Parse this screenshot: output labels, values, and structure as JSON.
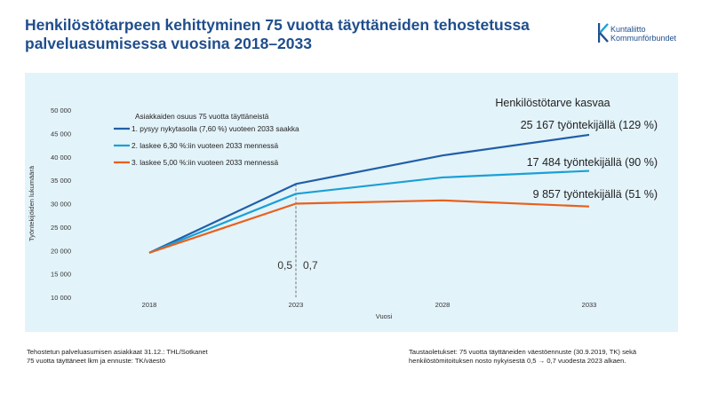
{
  "title_line1": "Henkilöstötarpeen kehittyminen 75 vuotta täyttäneiden tehostetussa",
  "title_line2": "palveluasumisessa vuosina 2018–2033",
  "logo": {
    "line1": "Kuntaliitto",
    "line2": "Kommunförbundet",
    "color": "#1f4e8c"
  },
  "footer_left": [
    "Tehostetun palveluasumisen asiakkaat 31.12.: THL/Sotkanet",
    "75 vuotta täyttäneet lkm ja ennuste: TK/väestö"
  ],
  "footer_right": [
    "Taustaoletukset: 75 vuotta täyttäneiden väestöennuste (30.9.2019, TK) sekä",
    "henkilöstömitoituksen nosto nykyisestä 0,5 → 0,7 vuodesta 2023 alkaen."
  ],
  "chart_data": {
    "type": "line",
    "x": [
      "2018",
      "2023",
      "2028",
      "2033"
    ],
    "xlabel": "Vuosi",
    "ylabel": "Työntekijöiden lukumäärä",
    "ylim": [
      10000,
      50000
    ],
    "yticks": [
      "10 000",
      "15 000",
      "20 000",
      "25 000",
      "30 000",
      "35 000",
      "40 000",
      "45 000",
      "50 000"
    ],
    "ytick_values": [
      10000,
      15000,
      20000,
      25000,
      30000,
      35000,
      40000,
      45000,
      50000
    ],
    "grid": false,
    "legend_title": "Asiakkaiden osuus 75 vuotta täyttäneistä",
    "legend_position": "top-left",
    "series": [
      {
        "name": "1. pysyy nykytasolla (7,60 %) vuoteen 2033 saakka",
        "color": "#1f5fa8",
        "values": [
          19500,
          34200,
          40300,
          44700
        ],
        "end_label": "25 167 työntekijällä (129 %)"
      },
      {
        "name": "2. laskee 6,30 %:iin vuoteen 2033 mennessä",
        "color": "#1aa0d6",
        "values": [
          19500,
          32100,
          35600,
          37000
        ],
        "end_label": "17 484 työntekijällä (90 %)"
      },
      {
        "name": "3. laskee 5,00 %:iin vuoteen 2033 mennessä",
        "color": "#e8601c",
        "values": [
          19500,
          30000,
          30700,
          29400
        ],
        "end_label": "9 857 työntekijällä (51 %)"
      }
    ],
    "annotation_header": "Henkilöstötarve kasvaa",
    "marker_line": {
      "x": "2023",
      "left_label": "0,5",
      "right_label": "0,7"
    }
  }
}
